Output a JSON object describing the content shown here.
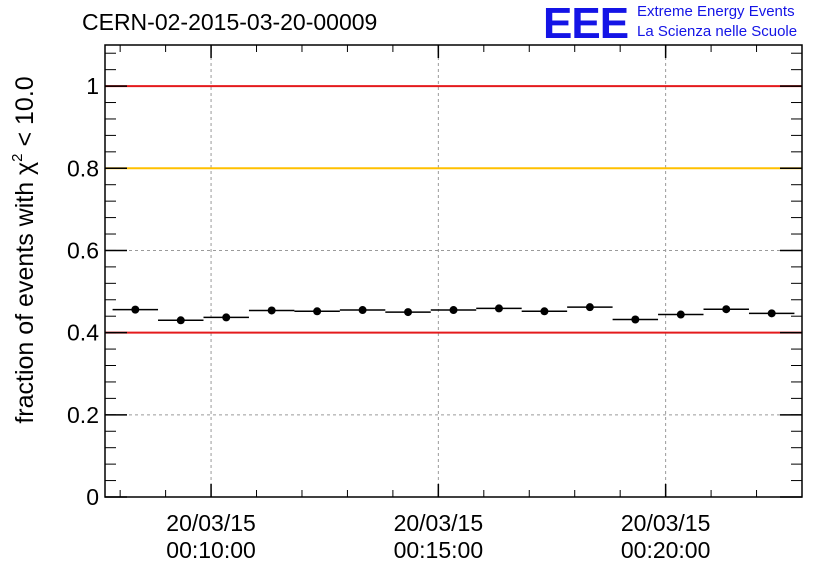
{
  "header": {
    "title": "CERN-02-2015-03-20-00009",
    "logo_mark": "EEE",
    "logo_line1": "Extreme Energy Events",
    "logo_line2": "La Scienza nelle Scuole"
  },
  "colors": {
    "logo": "#1414e6",
    "red_line": "#e41a1c",
    "orange_line": "#ffc000",
    "grid": "#9a9a9a",
    "markers": "#000000"
  },
  "chart_data": {
    "type": "scatter",
    "title": "CERN-02-2015-03-20-00009",
    "ylabel_main": "fraction of events with χ",
    "ylabel_sup": "2",
    "ylabel_tail": " < 10.0",
    "xlabel": "",
    "ylim": [
      0,
      1.1
    ],
    "xlim": [
      "2015-03-20 00:07:40",
      "2015-03-20 00:23:00"
    ],
    "grid": true,
    "yticks": [
      {
        "value": 0,
        "label": "0"
      },
      {
        "value": 0.2,
        "label": "0.2"
      },
      {
        "value": 0.4,
        "label": "0.4"
      },
      {
        "value": 0.6,
        "label": "0.6"
      },
      {
        "value": 0.8,
        "label": "0.8"
      },
      {
        "value": 1.0,
        "label": "1"
      }
    ],
    "xticks": [
      {
        "time": "2015-03-20 00:10:00",
        "line1": "20/03/15",
        "line2": "00:10:00"
      },
      {
        "time": "2015-03-20 00:15:00",
        "line1": "20/03/15",
        "line2": "00:15:00"
      },
      {
        "time": "2015-03-20 00:20:00",
        "line1": "20/03/15",
        "line2": "00:20:00"
      }
    ],
    "reference_lines": [
      {
        "y": 1.0,
        "color": "#e41a1c"
      },
      {
        "y": 0.8,
        "color": "#ffc000"
      },
      {
        "y": 0.4,
        "color": "#e41a1c"
      }
    ],
    "bin_width_seconds": 60,
    "points": [
      {
        "x": "2015-03-20 00:08:20",
        "y": 0.456
      },
      {
        "x": "2015-03-20 00:09:20",
        "y": 0.43
      },
      {
        "x": "2015-03-20 00:10:20",
        "y": 0.437
      },
      {
        "x": "2015-03-20 00:11:20",
        "y": 0.454
      },
      {
        "x": "2015-03-20 00:12:20",
        "y": 0.452
      },
      {
        "x": "2015-03-20 00:13:20",
        "y": 0.455
      },
      {
        "x": "2015-03-20 00:14:20",
        "y": 0.45
      },
      {
        "x": "2015-03-20 00:15:20",
        "y": 0.455
      },
      {
        "x": "2015-03-20 00:16:20",
        "y": 0.459
      },
      {
        "x": "2015-03-20 00:17:20",
        "y": 0.452
      },
      {
        "x": "2015-03-20 00:18:20",
        "y": 0.462
      },
      {
        "x": "2015-03-20 00:19:20",
        "y": 0.432
      },
      {
        "x": "2015-03-20 00:20:20",
        "y": 0.444
      },
      {
        "x": "2015-03-20 00:21:20",
        "y": 0.457
      },
      {
        "x": "2015-03-20 00:22:20",
        "y": 0.447
      }
    ]
  }
}
